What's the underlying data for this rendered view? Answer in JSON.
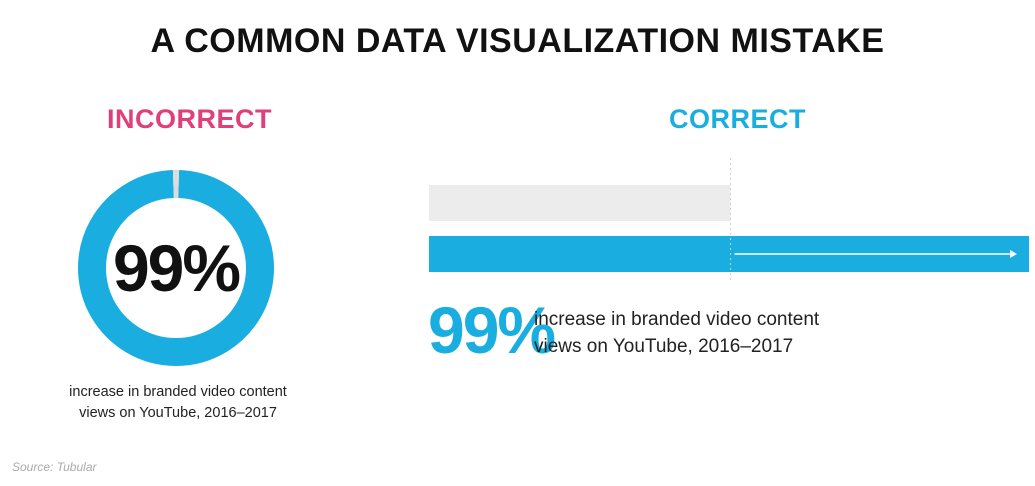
{
  "title": "A COMMON DATA VISUALIZATION MISTAKE",
  "colors": {
    "accent": "#1aaee0",
    "incorrect": "#e0407a",
    "baseline_bar": "#ececec",
    "donut_gap": "#dcdcdc",
    "text": "#111111"
  },
  "incorrect_panel": {
    "label": "INCORRECT",
    "value_text": "99%",
    "caption_line1": "increase in branded video content",
    "caption_line2": "views on YouTube, 2016–2017"
  },
  "correct_panel": {
    "label": "CORRECT",
    "value_text": "99%",
    "caption_line1": "increase in branded video content",
    "caption_line2": "views on YouTube, 2016–2017"
  },
  "source": "Source: Tubular",
  "chart_data": [
    {
      "type": "pie",
      "subtype": "donut",
      "slices": [
        {
          "label": "",
          "value": 99,
          "color": "#1aaee0"
        },
        {
          "label": "",
          "value": 1,
          "color": "#dcdcdc"
        }
      ]
    },
    {
      "type": "bar",
      "orientation": "horizontal",
      "categories": [
        "",
        ""
      ],
      "values": [
        100,
        199
      ],
      "colors": [
        "#ececec",
        "#1aaee0"
      ],
      "xlim": [
        0,
        199
      ]
    }
  ]
}
